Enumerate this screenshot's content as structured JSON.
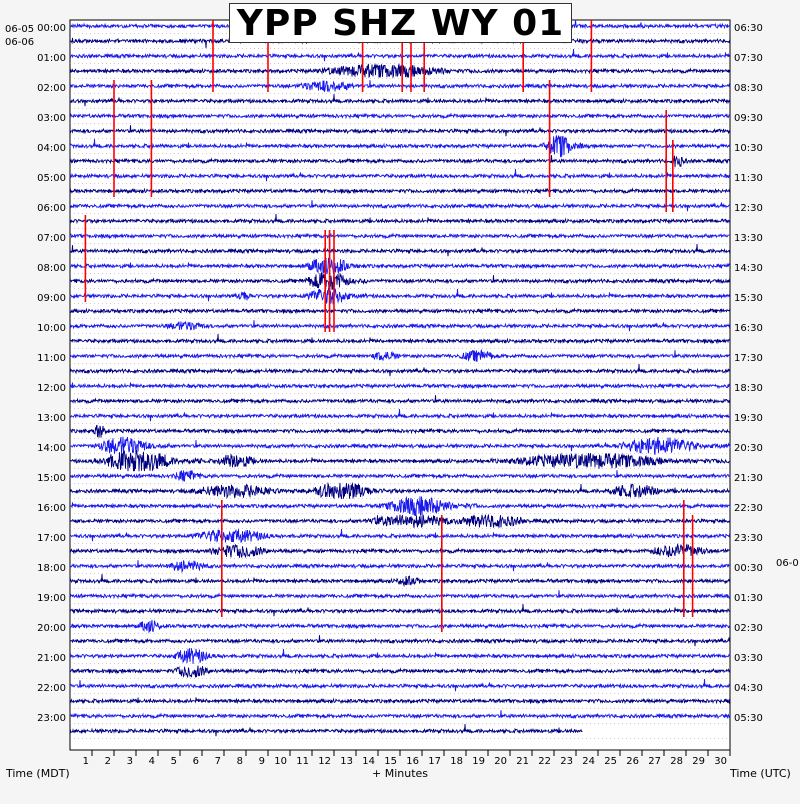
{
  "chart_data": {
    "type": "line",
    "title": "YPP SHZ WY 01",
    "xlabel": "+ Minutes",
    "left_axis_label": "Time (MDT)",
    "right_axis_label": "Time (UTC)",
    "left_date_top": "06-05",
    "left_date_second": "06-06",
    "right_date_change": "06-0",
    "x_ticks": [
      "1",
      "2",
      "3",
      "4",
      "5",
      "6",
      "7",
      "8",
      "9",
      "10",
      "11",
      "12",
      "13",
      "14",
      "15",
      "16",
      "17",
      "18",
      "19",
      "20",
      "21",
      "22",
      "23",
      "24",
      "25",
      "26",
      "27",
      "28",
      "29",
      "30"
    ],
    "xlim": [
      0,
      30
    ],
    "rows_count": 48,
    "row_minutes": 30,
    "left_labels": [
      {
        "row": 1,
        "text": "00:00"
      },
      {
        "row": 3,
        "text": "01:00"
      },
      {
        "row": 5,
        "text": "02:00"
      },
      {
        "row": 7,
        "text": "03:00"
      },
      {
        "row": 9,
        "text": "04:00"
      },
      {
        "row": 11,
        "text": "05:00"
      },
      {
        "row": 13,
        "text": "06:00"
      },
      {
        "row": 15,
        "text": "07:00"
      },
      {
        "row": 17,
        "text": "08:00"
      },
      {
        "row": 19,
        "text": "09:00"
      },
      {
        "row": 21,
        "text": "10:00"
      },
      {
        "row": 23,
        "text": "11:00"
      },
      {
        "row": 25,
        "text": "12:00"
      },
      {
        "row": 27,
        "text": "13:00"
      },
      {
        "row": 29,
        "text": "14:00"
      },
      {
        "row": 31,
        "text": "15:00"
      },
      {
        "row": 33,
        "text": "16:00"
      },
      {
        "row": 35,
        "text": "17:00"
      },
      {
        "row": 37,
        "text": "18:00"
      },
      {
        "row": 39,
        "text": "19:00"
      },
      {
        "row": 41,
        "text": "20:00"
      },
      {
        "row": 43,
        "text": "21:00"
      },
      {
        "row": 45,
        "text": "22:00"
      },
      {
        "row": 47,
        "text": "23:00"
      }
    ],
    "right_labels": [
      {
        "row": 1,
        "text": "06:30"
      },
      {
        "row": 3,
        "text": "07:30"
      },
      {
        "row": 5,
        "text": "08:30"
      },
      {
        "row": 7,
        "text": "09:30"
      },
      {
        "row": 9,
        "text": "10:30"
      },
      {
        "row": 11,
        "text": "11:30"
      },
      {
        "row": 13,
        "text": "12:30"
      },
      {
        "row": 15,
        "text": "13:30"
      },
      {
        "row": 17,
        "text": "14:30"
      },
      {
        "row": 19,
        "text": "15:30"
      },
      {
        "row": 21,
        "text": "16:30"
      },
      {
        "row": 23,
        "text": "17:30"
      },
      {
        "row": 25,
        "text": "18:30"
      },
      {
        "row": 27,
        "text": "19:30"
      },
      {
        "row": 29,
        "text": "20:30"
      },
      {
        "row": 31,
        "text": "21:30"
      },
      {
        "row": 33,
        "text": "22:30"
      },
      {
        "row": 35,
        "text": "23:30"
      },
      {
        "row": 37,
        "text": "00:30"
      },
      {
        "row": 39,
        "text": "01:30"
      },
      {
        "row": 41,
        "text": "02:30"
      },
      {
        "row": 43,
        "text": "03:30"
      },
      {
        "row": 45,
        "text": "04:30"
      },
      {
        "row": 47,
        "text": "05:30"
      }
    ],
    "colors": {
      "dark": "#000080",
      "light": "#1a1aee",
      "event": "#ff0000"
    },
    "last_row_end_minute": 23.3,
    "bursts": [
      {
        "row": 28,
        "min": 1.0,
        "dur": 3.5,
        "amp": 10
      },
      {
        "row": 28,
        "min": 24.5,
        "dur": 5.5,
        "amp": 9
      },
      {
        "row": 29,
        "min": 1.0,
        "dur": 5.0,
        "amp": 11
      },
      {
        "row": 29,
        "min": 6.5,
        "dur": 2.5,
        "amp": 8
      },
      {
        "row": 29,
        "min": 19.0,
        "dur": 11.0,
        "amp": 8
      },
      {
        "row": 31,
        "min": 5.0,
        "dur": 6.0,
        "amp": 7
      },
      {
        "row": 31,
        "min": 10.5,
        "dur": 4.5,
        "amp": 9
      },
      {
        "row": 31,
        "min": 24.0,
        "dur": 4.0,
        "amp": 7
      },
      {
        "row": 32,
        "min": 14.0,
        "dur": 4.5,
        "amp": 10
      },
      {
        "row": 33,
        "min": 13.0,
        "dur": 6.0,
        "amp": 7
      },
      {
        "row": 33,
        "min": 17.0,
        "dur": 5.0,
        "amp": 7
      },
      {
        "row": 34,
        "min": 5.0,
        "dur": 5.5,
        "amp": 7
      },
      {
        "row": 35,
        "min": 6.0,
        "dur": 4.0,
        "amp": 7
      },
      {
        "row": 35,
        "min": 26.0,
        "dur": 4.0,
        "amp": 7
      },
      {
        "row": 36,
        "min": 4.0,
        "dur": 3.0,
        "amp": 6
      },
      {
        "row": 16,
        "min": 10.5,
        "dur": 3.0,
        "amp": 9
      },
      {
        "row": 17,
        "min": 10.5,
        "dur": 3.0,
        "amp": 10
      },
      {
        "row": 18,
        "min": 10.5,
        "dur": 3.0,
        "amp": 9
      },
      {
        "row": 3,
        "min": 10.5,
        "dur": 9.0,
        "amp": 7
      },
      {
        "row": 4,
        "min": 10.0,
        "dur": 4.0,
        "amp": 6
      },
      {
        "row": 8,
        "min": 21.5,
        "dur": 1.8,
        "amp": 12
      },
      {
        "row": 9,
        "min": 27.3,
        "dur": 0.8,
        "amp": 8
      },
      {
        "row": 42,
        "min": 4.5,
        "dur": 2.5,
        "amp": 8
      },
      {
        "row": 43,
        "min": 4.5,
        "dur": 2.5,
        "amp": 7
      },
      {
        "row": 40,
        "min": 3.0,
        "dur": 1.5,
        "amp": 7
      },
      {
        "row": 22,
        "min": 17.5,
        "dur": 2.5,
        "amp": 6
      },
      {
        "row": 22,
        "min": 13.5,
        "dur": 2.0,
        "amp": 5
      },
      {
        "row": 20,
        "min": 4.0,
        "dur": 3.0,
        "amp": 5
      },
      {
        "row": 27,
        "min": 1.0,
        "dur": 0.8,
        "amp": 8
      },
      {
        "row": 30,
        "min": 4.5,
        "dur": 2.0,
        "amp": 6
      },
      {
        "row": 37,
        "min": 14.5,
        "dur": 2.0,
        "amp": 5
      },
      {
        "row": 18,
        "min": 7.5,
        "dur": 1.0,
        "amp": 6
      }
    ],
    "events": [
      {
        "min": 6.5,
        "row_start": 0,
        "row_end": 4
      },
      {
        "min": 9.0,
        "row_start": 0,
        "row_end": 4
      },
      {
        "min": 13.3,
        "row_start": 0,
        "row_end": 4
      },
      {
        "min": 15.1,
        "row_start": 0,
        "row_end": 4
      },
      {
        "min": 15.5,
        "row_start": 0,
        "row_end": 4
      },
      {
        "min": 16.1,
        "row_start": 1,
        "row_end": 4
      },
      {
        "min": 20.6,
        "row_start": 0,
        "row_end": 4
      },
      {
        "min": 23.7,
        "row_start": 0,
        "row_end": 4
      },
      {
        "min": 2.0,
        "row_start": 4,
        "row_end": 11
      },
      {
        "min": 3.7,
        "row_start": 4,
        "row_end": 11
      },
      {
        "min": 21.8,
        "row_start": 4,
        "row_end": 11
      },
      {
        "min": 27.1,
        "row_start": 6,
        "row_end": 12
      },
      {
        "min": 27.4,
        "row_start": 8,
        "row_end": 12
      },
      {
        "min": 0.7,
        "row_start": 13,
        "row_end": 18
      },
      {
        "min": 11.6,
        "row_start": 14,
        "row_end": 20
      },
      {
        "min": 11.8,
        "row_start": 14,
        "row_end": 20
      },
      {
        "min": 12.0,
        "row_start": 14,
        "row_end": 20
      },
      {
        "min": 6.9,
        "row_start": 32,
        "row_end": 39
      },
      {
        "min": 16.9,
        "row_start": 33,
        "row_end": 40
      },
      {
        "min": 27.9,
        "row_start": 32,
        "row_end": 39
      },
      {
        "min": 28.3,
        "row_start": 33,
        "row_end": 39
      }
    ]
  }
}
